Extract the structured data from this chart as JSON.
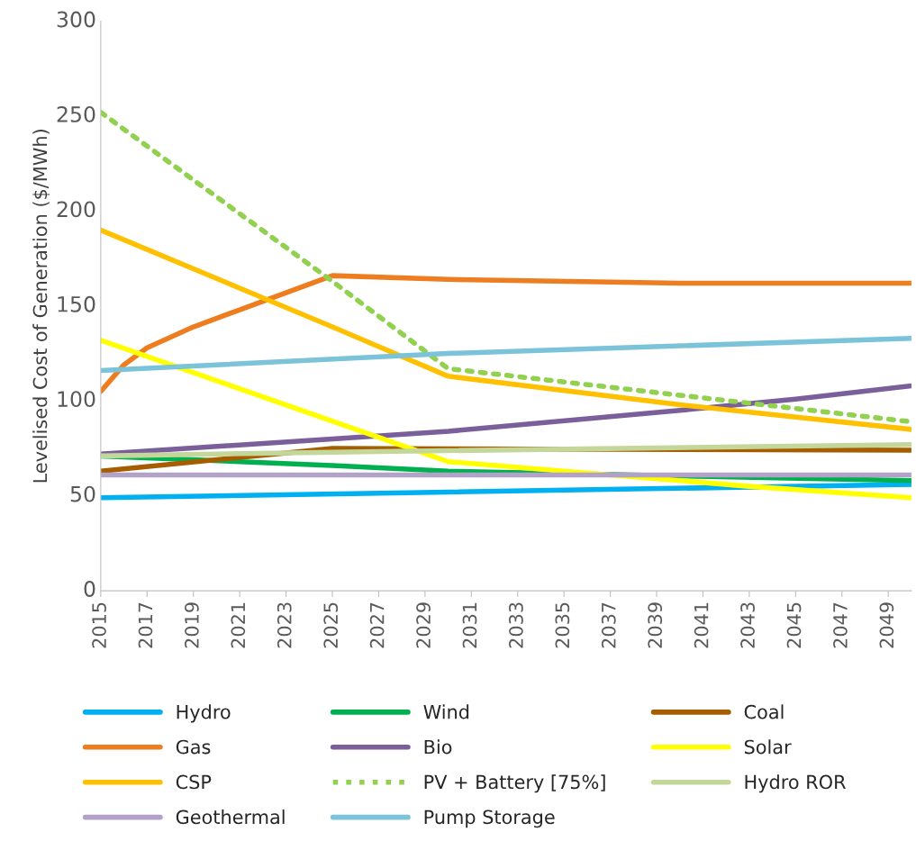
{
  "chart_data": {
    "type": "line",
    "ylabel": "Levelised Cost of Generation ($/MWh)",
    "xlim": [
      2015,
      2050
    ],
    "xticks": [
      2015,
      2017,
      2019,
      2021,
      2023,
      2025,
      2027,
      2029,
      2031,
      2033,
      2035,
      2037,
      2039,
      2041,
      2043,
      2045,
      2047,
      2049
    ],
    "ylim": [
      0,
      300
    ],
    "yticks": [
      0,
      50,
      100,
      150,
      200,
      250,
      300
    ],
    "grid": false,
    "legend": "bottom",
    "line_style": "solid",
    "series": [
      {
        "name": "Hydro",
        "color": "#00b0f0",
        "x": [
          2015,
          2030,
          2050
        ],
        "values": [
          49,
          52,
          56
        ]
      },
      {
        "name": "Wind",
        "color": "#00b050",
        "x": [
          2015,
          2025,
          2030,
          2050
        ],
        "values": [
          71,
          66,
          63,
          58
        ]
      },
      {
        "name": "Coal",
        "color": "#a65d00",
        "x": [
          2015,
          2025,
          2050
        ],
        "values": [
          63,
          75,
          74
        ]
      },
      {
        "name": "Gas",
        "color": "#ed7d1f",
        "x": [
          2015,
          2016,
          2017,
          2019,
          2021,
          2025,
          2030,
          2040,
          2050
        ],
        "values": [
          105,
          119,
          128,
          139,
          148,
          166,
          164,
          162,
          162
        ]
      },
      {
        "name": "Bio",
        "color": "#7a5f9a",
        "x": [
          2015,
          2025,
          2030,
          2040,
          2045,
          2050
        ],
        "values": [
          72,
          80,
          84,
          95,
          101,
          108
        ]
      },
      {
        "name": "Solar",
        "color": "#ffff00",
        "x": [
          2015,
          2030,
          2037,
          2043,
          2050
        ],
        "values": [
          132,
          68,
          61,
          55,
          49
        ]
      },
      {
        "name": "CSP",
        "color": "#ffc000",
        "x": [
          2015,
          2025,
          2030,
          2040,
          2050
        ],
        "values": [
          190,
          139,
          113,
          98,
          85
        ]
      },
      {
        "name": "PV + Battery [75%]",
        "color": "#92d050",
        "line_style": "dotted",
        "x": [
          2015,
          2025,
          2030,
          2040,
          2050
        ],
        "values": [
          252,
          163,
          117,
          103,
          89
        ]
      },
      {
        "name": "Hydro ROR",
        "color": "#c4d79b",
        "x": [
          2015,
          2025,
          2050
        ],
        "values": [
          71,
          73,
          77
        ]
      },
      {
        "name": "Geothermal",
        "color": "#b3a2c7",
        "x": [
          2015,
          2050
        ],
        "values": [
          61,
          61
        ]
      },
      {
        "name": "Pump Storage",
        "color": "#7ac3d8",
        "x": [
          2015,
          2030,
          2050
        ],
        "values": [
          116,
          125,
          133
        ]
      }
    ]
  }
}
